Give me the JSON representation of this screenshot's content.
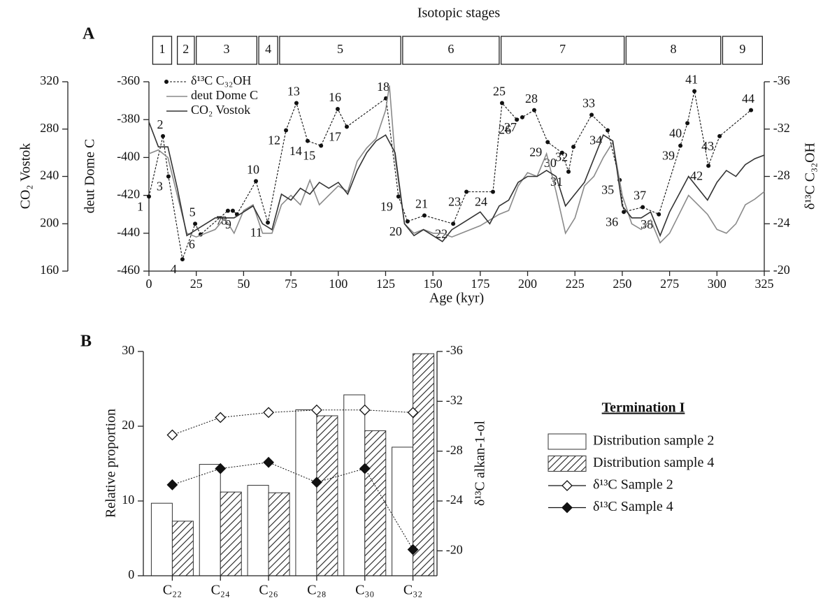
{
  "chart_data": [
    {
      "type": "line",
      "panel": "A",
      "title": "Isotopic stages",
      "x_label": "Age  (kyr)",
      "y_label": "deut Dome C",
      "y2_label": "δ¹³C C₃₂OH",
      "y3_label": "CO₂ Vostok",
      "xlim": [
        0,
        325
      ],
      "xticks": [
        0,
        25,
        50,
        75,
        100,
        125,
        150,
        175,
        200,
        225,
        250,
        275,
        300,
        325
      ],
      "ylim": [
        -460,
        -360
      ],
      "yticks": [
        -460,
        -440,
        -420,
        -400,
        -380,
        -360
      ],
      "y2lim": [
        -20,
        -36
      ],
      "y2ticks": [
        -36,
        -32,
        -28,
        -24,
        -20
      ],
      "y3lim": [
        160,
        320
      ],
      "y3ticks": [
        160,
        200,
        240,
        280,
        320
      ],
      "legend": "upper left",
      "stages": [
        {
          "label": "1",
          "start": 2,
          "end": 12
        },
        {
          "label": "2",
          "start": 15,
          "end": 24
        },
        {
          "label": "3",
          "start": 25,
          "end": 57
        },
        {
          "label": "4",
          "start": 58,
          "end": 68
        },
        {
          "label": "5",
          "start": 69,
          "end": 133
        },
        {
          "label": "6",
          "start": 134,
          "end": 185
        },
        {
          "label": "7",
          "start": 186,
          "end": 251
        },
        {
          "label": "8",
          "start": 252,
          "end": 302
        },
        {
          "label": "9",
          "start": 303,
          "end": 324
        }
      ],
      "series": [
        {
          "name": "δ¹³C C₃₂OH",
          "color": "#111111",
          "axis": "y2",
          "dashed": true,
          "marker": "dot",
          "labels": [
            "1",
            "2",
            "3",
            "4",
            "5",
            "6",
            "7",
            "8",
            "9",
            "10",
            "11",
            "12",
            "13",
            "14",
            "15",
            "16",
            "17",
            "18",
            "19",
            "20",
            "21",
            "22",
            "23",
            "24",
            "25",
            "26",
            "27",
            "28",
            "29",
            "30",
            "31",
            "32",
            "33",
            "34",
            "35",
            "36",
            "37",
            "38",
            "39",
            "40",
            "41",
            "42",
            "43",
            "44"
          ],
          "x": [
            0,
            7.4,
            10.3,
            17.7,
            24.4,
            27.3,
            41.7,
            44.3,
            46.5,
            56.5,
            62.8,
            72.4,
            77.9,
            83.8,
            90.9,
            99.7,
            104.5,
            125.2,
            131.8,
            136.6,
            145.5,
            160.7,
            167.7,
            181.7,
            186.5,
            194.3,
            197.2,
            203.5,
            210.6,
            218.2,
            221.6,
            224.2,
            233.8,
            242.3,
            248.6,
            250.8,
            260.8,
            269.3,
            280.7,
            284.4,
            288.1,
            295.5,
            301.4,
            318
          ],
          "values": [
            -26.3,
            -31.4,
            -28.0,
            -21.0,
            -24.0,
            -23.1,
            -25.1,
            -25.1,
            -24.8,
            -27.6,
            -24.1,
            -31.9,
            -34.2,
            -31.0,
            -30.6,
            -33.7,
            -32.2,
            -34.6,
            -26.3,
            -24.2,
            -24.7,
            -24.0,
            -26.7,
            -26.7,
            -34.2,
            -32.8,
            -33.0,
            -33.6,
            -30.9,
            -30.0,
            -28.4,
            -30.5,
            -33.2,
            -31.9,
            -27.7,
            -25.0,
            -25.4,
            -24.8,
            -30.6,
            -32.5,
            -35.2,
            -28.9,
            -31.4,
            -33.6
          ]
        },
        {
          "name": "deut Dome C",
          "color": "#8a8a8a",
          "axis": "y",
          "x": [
            0,
            5,
            10,
            15,
            20,
            25,
            30,
            35,
            40,
            45,
            50,
            55,
            60,
            65,
            70,
            75,
            80,
            85,
            90,
            95,
            100,
            105,
            110,
            115,
            120,
            125,
            127,
            130,
            135,
            140,
            145,
            150,
            155,
            160,
            165,
            170,
            175,
            180,
            185,
            190,
            195,
            200,
            205,
            210,
            215,
            220,
            225,
            230,
            235,
            240,
            245,
            250,
            255,
            260,
            265,
            270,
            275,
            280,
            285,
            290,
            295,
            300,
            305,
            310,
            315,
            320,
            325
          ],
          "values": [
            -398,
            -396,
            -400,
            -420,
            -440,
            -442,
            -440,
            -438,
            -432,
            -440,
            -428,
            -425,
            -440,
            -440,
            -425,
            -420,
            -425,
            -412,
            -425,
            -420,
            -415,
            -418,
            -402,
            -395,
            -390,
            -375,
            -362,
            -400,
            -435,
            -440,
            -438,
            -440,
            -440,
            -442,
            -440,
            -438,
            -436,
            -433,
            -430,
            -428,
            -415,
            -408,
            -410,
            -398,
            -418,
            -440,
            -432,
            -415,
            -410,
            -400,
            -392,
            -420,
            -435,
            -438,
            -433,
            -445,
            -440,
            -430,
            -420,
            -425,
            -430,
            -438,
            -440,
            -435,
            -425,
            -422,
            -418
          ]
        },
        {
          "name": "CO₂ Vostok",
          "color": "#333333",
          "axis": "y3",
          "x": [
            0,
            5,
            10,
            15,
            20,
            25,
            30,
            35,
            40,
            45,
            50,
            55,
            60,
            65,
            70,
            75,
            80,
            85,
            90,
            95,
            100,
            105,
            110,
            115,
            120,
            125,
            130,
            135,
            140,
            145,
            150,
            155,
            160,
            165,
            170,
            175,
            180,
            185,
            190,
            195,
            200,
            205,
            210,
            215,
            220,
            225,
            230,
            235,
            240,
            245,
            250,
            255,
            260,
            265,
            270,
            275,
            280,
            285,
            290,
            295,
            300,
            305,
            310,
            315,
            320,
            325
          ],
          "values": [
            286,
            265,
            265,
            230,
            190,
            195,
            200,
            205,
            205,
            205,
            210,
            215,
            200,
            195,
            225,
            220,
            230,
            225,
            235,
            230,
            235,
            225,
            245,
            260,
            270,
            275,
            260,
            200,
            190,
            195,
            190,
            185,
            195,
            200,
            205,
            210,
            200,
            215,
            220,
            235,
            240,
            240,
            245,
            240,
            215,
            225,
            235,
            255,
            275,
            270,
            215,
            205,
            205,
            210,
            190,
            210,
            225,
            240,
            230,
            220,
            235,
            245,
            240,
            250,
            255,
            258
          ]
        }
      ]
    },
    {
      "type": "bar",
      "panel": "B",
      "y_label": "Relative proportion",
      "y2_label": "δ¹³C alkan-1-ol",
      "legend_title": "Termination I",
      "legend": "right",
      "categories": [
        "C₂₂",
        "C₂₄",
        "C₂₆",
        "C₂₈",
        "C₃₀",
        "C₃₂"
      ],
      "ylim": [
        0,
        30
      ],
      "yticks": [
        0,
        10,
        20,
        30
      ],
      "y2lim": [
        -18,
        -36
      ],
      "y2ticks": [
        -36,
        -32,
        -28,
        -24,
        -20
      ],
      "series": [
        {
          "name": "Distribution sample 2",
          "color": "#ffffff",
          "values": [
            9.7,
            14.9,
            12.1,
            22.2,
            24.2,
            17.2
          ]
        },
        {
          "name": "Distribution sample 4",
          "color": "#ffffff",
          "hatch": true,
          "values": [
            7.3,
            11.2,
            11.1,
            21.4,
            19.4,
            29.7
          ]
        },
        {
          "name": "δ¹³C Sample 2",
          "color": "#111111",
          "axis": "y2",
          "marker": "open-diamond",
          "values": [
            -29.3,
            -30.7,
            -31.1,
            -31.3,
            -31.3,
            -31.1
          ]
        },
        {
          "name": "δ¹³C Sample 4",
          "color": "#111111",
          "axis": "y2",
          "marker": "filled-diamond",
          "values": [
            -25.3,
            -26.6,
            -27.1,
            -25.5,
            -26.6,
            -20.1
          ]
        }
      ]
    }
  ]
}
